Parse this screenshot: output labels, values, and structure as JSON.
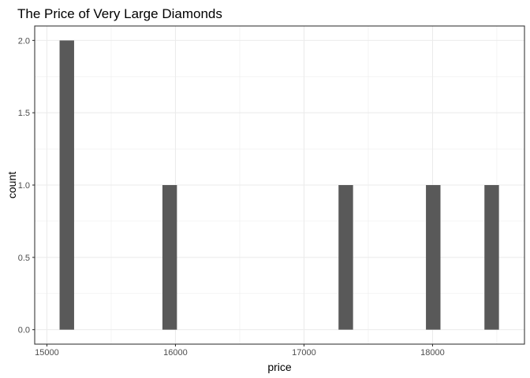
{
  "chart_data": {
    "type": "bar",
    "title": "The Price of Very Large Diamonds",
    "xlabel": "price",
    "ylabel": "count",
    "bars": [
      {
        "x": 15155,
        "count": 2
      },
      {
        "x": 15955,
        "count": 1
      },
      {
        "x": 17325,
        "count": 1
      },
      {
        "x": 18005,
        "count": 1
      },
      {
        "x": 18460,
        "count": 1
      }
    ],
    "bin_width": 113,
    "xlim": [
      14905,
      18715
    ],
    "ylim": [
      -0.1,
      2.1
    ],
    "x_ticks": [
      15000,
      16000,
      17000,
      18000
    ],
    "x_tick_labels": [
      "15000",
      "16000",
      "17000",
      "18000"
    ],
    "x_minor_ticks": [
      15500,
      16500,
      17500,
      18500
    ],
    "y_ticks": [
      0.0,
      0.5,
      1.0,
      1.5,
      2.0
    ],
    "y_tick_labels": [
      "0.0",
      "0.5",
      "1.0",
      "1.5",
      "2.0"
    ],
    "y_minor_ticks": [
      0.25,
      0.75,
      1.25,
      1.75
    ],
    "grid": true,
    "theme": "bw",
    "bar_color": "#595959",
    "grid_color": "#ebebeb",
    "border_color": "#333333"
  }
}
